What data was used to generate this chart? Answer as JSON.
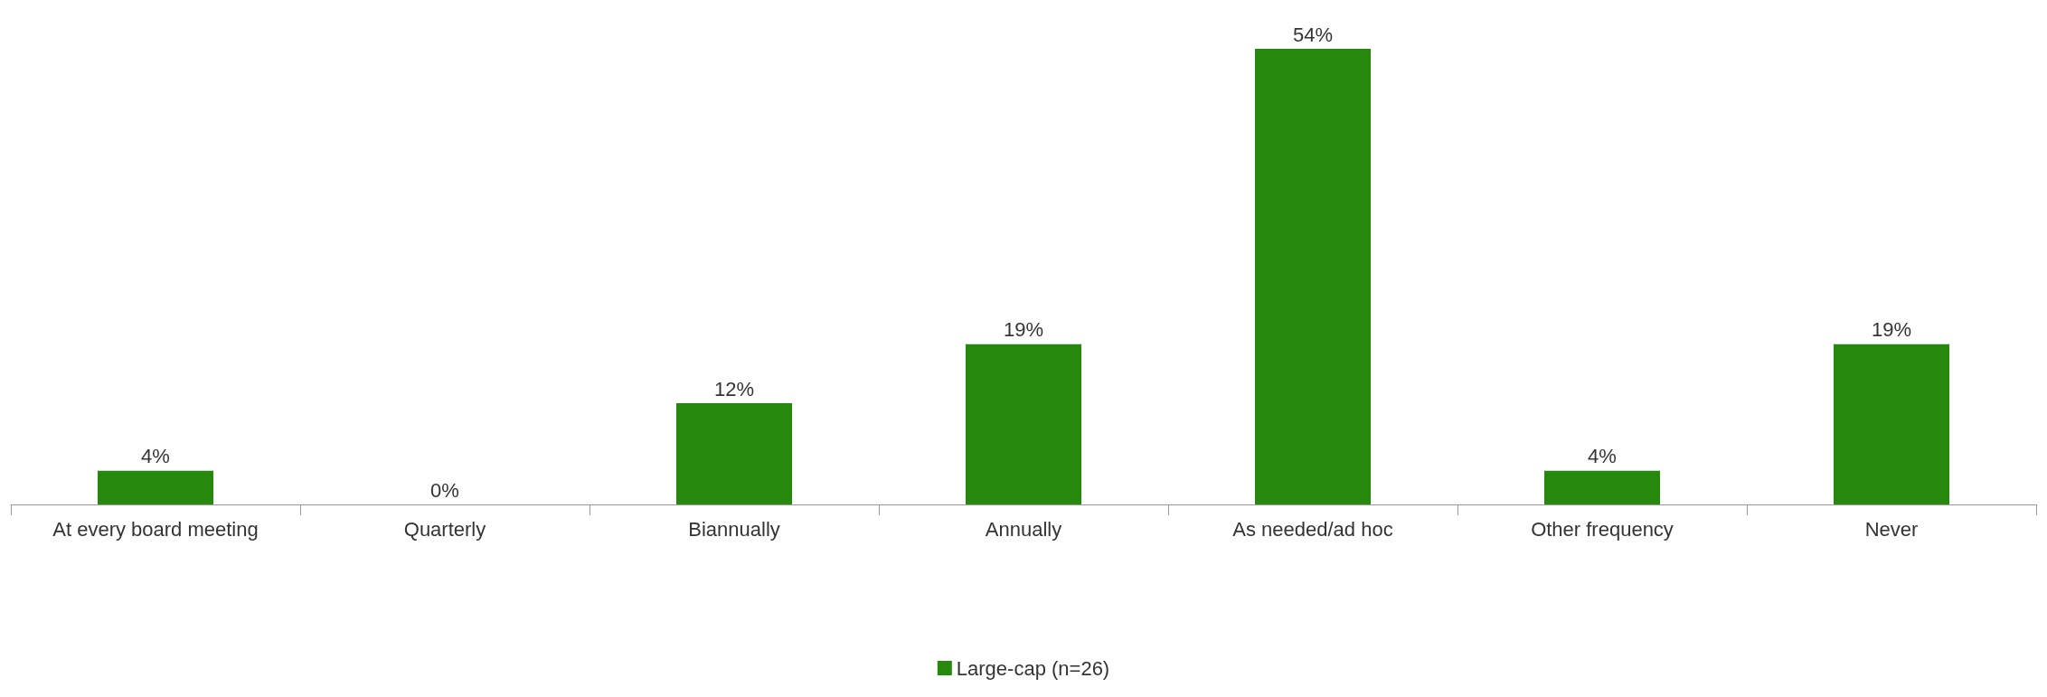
{
  "chart_data": {
    "type": "bar",
    "categories": [
      "At every board meeting",
      "Quarterly",
      "Biannually",
      "Annually",
      "As needed/ad hoc",
      "Other frequency",
      "Never"
    ],
    "series": [
      {
        "name": "Large-cap (n=26)",
        "color": "#26890d",
        "values": [
          4,
          0,
          12,
          19,
          54,
          4,
          19
        ],
        "value_labels": [
          "4%",
          "0%",
          "12%",
          "19%",
          "54%",
          "4%",
          "19%"
        ]
      }
    ],
    "legend": "bottom"
  }
}
